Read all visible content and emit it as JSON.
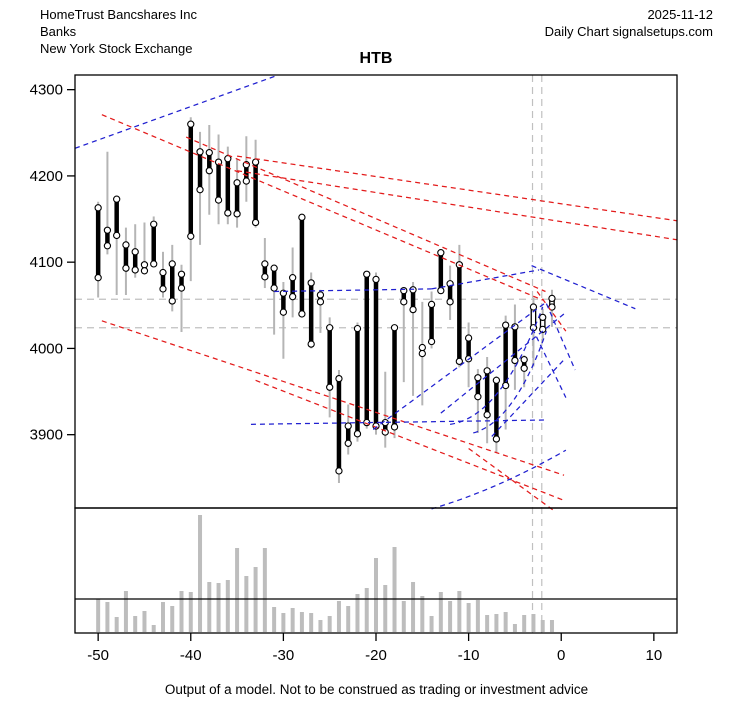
{
  "header": {
    "company": "HomeTrust Bancshares Inc",
    "sector": "Banks",
    "exchange": "New York Stock Exchange",
    "date": "2025-11-12",
    "chart_source": "Daily Chart signalsetups.com"
  },
  "title": "HTB",
  "footer": {
    "disclaimer": "Output of a model. Not to be construed as trading or investment advice"
  },
  "colors": {
    "red_line": "#e31b1b",
    "blue_line": "#2020d0",
    "wick_gray": "#b5b5b5",
    "grid_gray": "#c0c0c0",
    "volume_gray": "#bdbdbd",
    "bar_black": "#000000",
    "axis_black": "#000000"
  },
  "chart_data": {
    "type": "ohlc-bar-with-volume",
    "title": "HTB",
    "x_ticks": [
      -50,
      -40,
      -30,
      -20,
      -10,
      0,
      10
    ],
    "y_ticks": [
      3900,
      4000,
      4100,
      4200,
      4300
    ],
    "xlim": [
      -52.5,
      12.5
    ],
    "ylim": [
      3815,
      4317
    ],
    "bars_ohlc_note": "each bar = [x, open, high, low, close]",
    "bars": [
      [
        -50,
        4163,
        4170,
        4059,
        4082
      ],
      [
        -49,
        4137,
        4228,
        4109,
        4119
      ],
      [
        -48,
        4173,
        4175,
        4062,
        4131
      ],
      [
        -47,
        4120,
        4140,
        4062,
        4093
      ],
      [
        -46,
        4112,
        4144,
        4082,
        4091
      ],
      [
        -45,
        4097,
        4146,
        4089,
        4090
      ],
      [
        -44,
        4144,
        4153,
        4095,
        4098
      ],
      [
        -43,
        4088,
        4112,
        4059,
        4069
      ],
      [
        -42,
        4098,
        4120,
        4043,
        4055
      ],
      [
        -41,
        4086,
        4097,
        4019,
        4070
      ],
      [
        -40,
        4260,
        4268,
        4078,
        4130
      ],
      [
        -39,
        4228,
        4251,
        4120,
        4184
      ],
      [
        -38,
        4227,
        4259,
        4155,
        4206
      ],
      [
        -37,
        4216,
        4248,
        4144,
        4172
      ],
      [
        -36,
        4220,
        4234,
        4144,
        4157
      ],
      [
        -35,
        4192,
        4219,
        4140,
        4156
      ],
      [
        -34,
        4213,
        4246,
        4170,
        4194
      ],
      [
        -33,
        4216,
        4242,
        4140,
        4146
      ],
      [
        -32,
        4098,
        4128,
        4070,
        4083
      ],
      [
        -31,
        4093,
        4094,
        4016,
        4070
      ],
      [
        -30,
        4064,
        4077,
        3988,
        4042
      ],
      [
        -29,
        4082,
        4117,
        4036,
        4060
      ],
      [
        -28,
        4152,
        4156,
        4036,
        4040
      ],
      [
        -27,
        4076,
        4088,
        4000,
        4005
      ],
      [
        -26,
        4062,
        4068,
        4018,
        4054
      ],
      [
        -25,
        4024,
        4036,
        3920,
        3955
      ],
      [
        -24,
        3965,
        3975,
        3844,
        3858
      ],
      [
        -23,
        3910,
        3935,
        3877,
        3890
      ],
      [
        -22,
        4023,
        4030,
        3892,
        3901
      ],
      [
        -21,
        4086,
        4089,
        3907,
        3914
      ],
      [
        -20,
        4080,
        4088,
        3900,
        3910
      ],
      [
        -19,
        3914,
        3973,
        3885,
        3903
      ],
      [
        -18,
        4024,
        4027,
        3896,
        3909
      ],
      [
        -17,
        4067,
        4069,
        3961,
        4054
      ],
      [
        -16,
        4068,
        4077,
        3945,
        4045
      ],
      [
        -15,
        4001,
        4054,
        3934,
        3994
      ],
      [
        -14,
        4051,
        4066,
        4000,
        4008
      ],
      [
        -13,
        4111,
        4114,
        4064,
        4067
      ],
      [
        -12,
        4075,
        4096,
        4033,
        4054
      ],
      [
        -11,
        4097,
        4120,
        3978,
        3985
      ],
      [
        -10,
        4012,
        4030,
        3955,
        3988
      ],
      [
        -9,
        3966,
        3976,
        3902,
        3944
      ],
      [
        -8,
        3974,
        3990,
        3890,
        3923
      ],
      [
        -7,
        3963,
        3968,
        3879,
        3895
      ],
      [
        -6,
        4027,
        4038,
        3906,
        3957
      ],
      [
        -5,
        4025,
        4051,
        3952,
        3986
      ],
      [
        -4,
        3987,
        3992,
        3955,
        3977
      ],
      [
        -3,
        4024,
        4059,
        3979,
        4048
      ],
      [
        -2,
        4022,
        4046,
        4008,
        4036
      ],
      [
        -1,
        4048,
        4068,
        4025,
        4058
      ]
    ],
    "volume_note": "relative height units, one per bar, x = -50..-1; panel max ~125",
    "volume": [
      33,
      30,
      15,
      41,
      16,
      21,
      7,
      30,
      26,
      41,
      40,
      117,
      50,
      49,
      52,
      84,
      56,
      65,
      84,
      25,
      19,
      24,
      20,
      19,
      12,
      16,
      31,
      26,
      38,
      44,
      74,
      47,
      85,
      31,
      50,
      36,
      16,
      40,
      31,
      41,
      29,
      32,
      17,
      18,
      20,
      8,
      17,
      18,
      12,
      12
    ],
    "volume_reference_level": 34,
    "gray_hlines": [
      4057,
      4024
    ],
    "gray_vlines": [
      -3.1,
      -2.1
    ],
    "red_trendlines": [
      [
        -49.6,
        4271,
        -2.0,
        4056
      ],
      [
        -40.5,
        4245,
        -1.7,
        4066
      ],
      [
        -35.0,
        4223,
        12.5,
        4148
      ],
      [
        -35.0,
        4206,
        12.5,
        4126
      ],
      [
        -49.6,
        4032,
        0.3,
        3853
      ],
      [
        -33.0,
        3963,
        0.5,
        3823
      ],
      [
        -10.0,
        3884,
        -0.8,
        3812
      ],
      [
        -2.6,
        4066,
        0.5,
        4020
      ]
    ],
    "blue_trendlines": [
      [
        -52.5,
        4232,
        -30.8,
        4316
      ],
      [
        -31.0,
        4066,
        -14.0,
        4069
      ],
      [
        -14.0,
        4069,
        -2.4,
        4091
      ],
      [
        -3.2,
        4096,
        8.0,
        4046
      ],
      [
        -33.5,
        3912,
        -1.8,
        3917
      ],
      [
        -20.3,
        3906,
        -1.7,
        4053
      ],
      [
        -13.0,
        3925,
        0.3,
        4040
      ],
      [
        -7.5,
        3898,
        0.4,
        3988
      ],
      [
        -3.1,
        4023,
        0.5,
        3943
      ],
      [
        -1.6,
        4052,
        1.5,
        3975
      ]
    ],
    "blue_curves_note": "quadratic curves [x0,v0, xc,vc, x1,v1]",
    "blue_curves": [
      [
        -12.0,
        3912,
        -6.5,
        3920,
        -2.0,
        4048
      ],
      [
        -9.5,
        3902,
        -5.0,
        3915,
        -1.6,
        4020
      ],
      [
        -14.0,
        3814,
        -7.0,
        3836,
        0.5,
        3882
      ]
    ]
  }
}
